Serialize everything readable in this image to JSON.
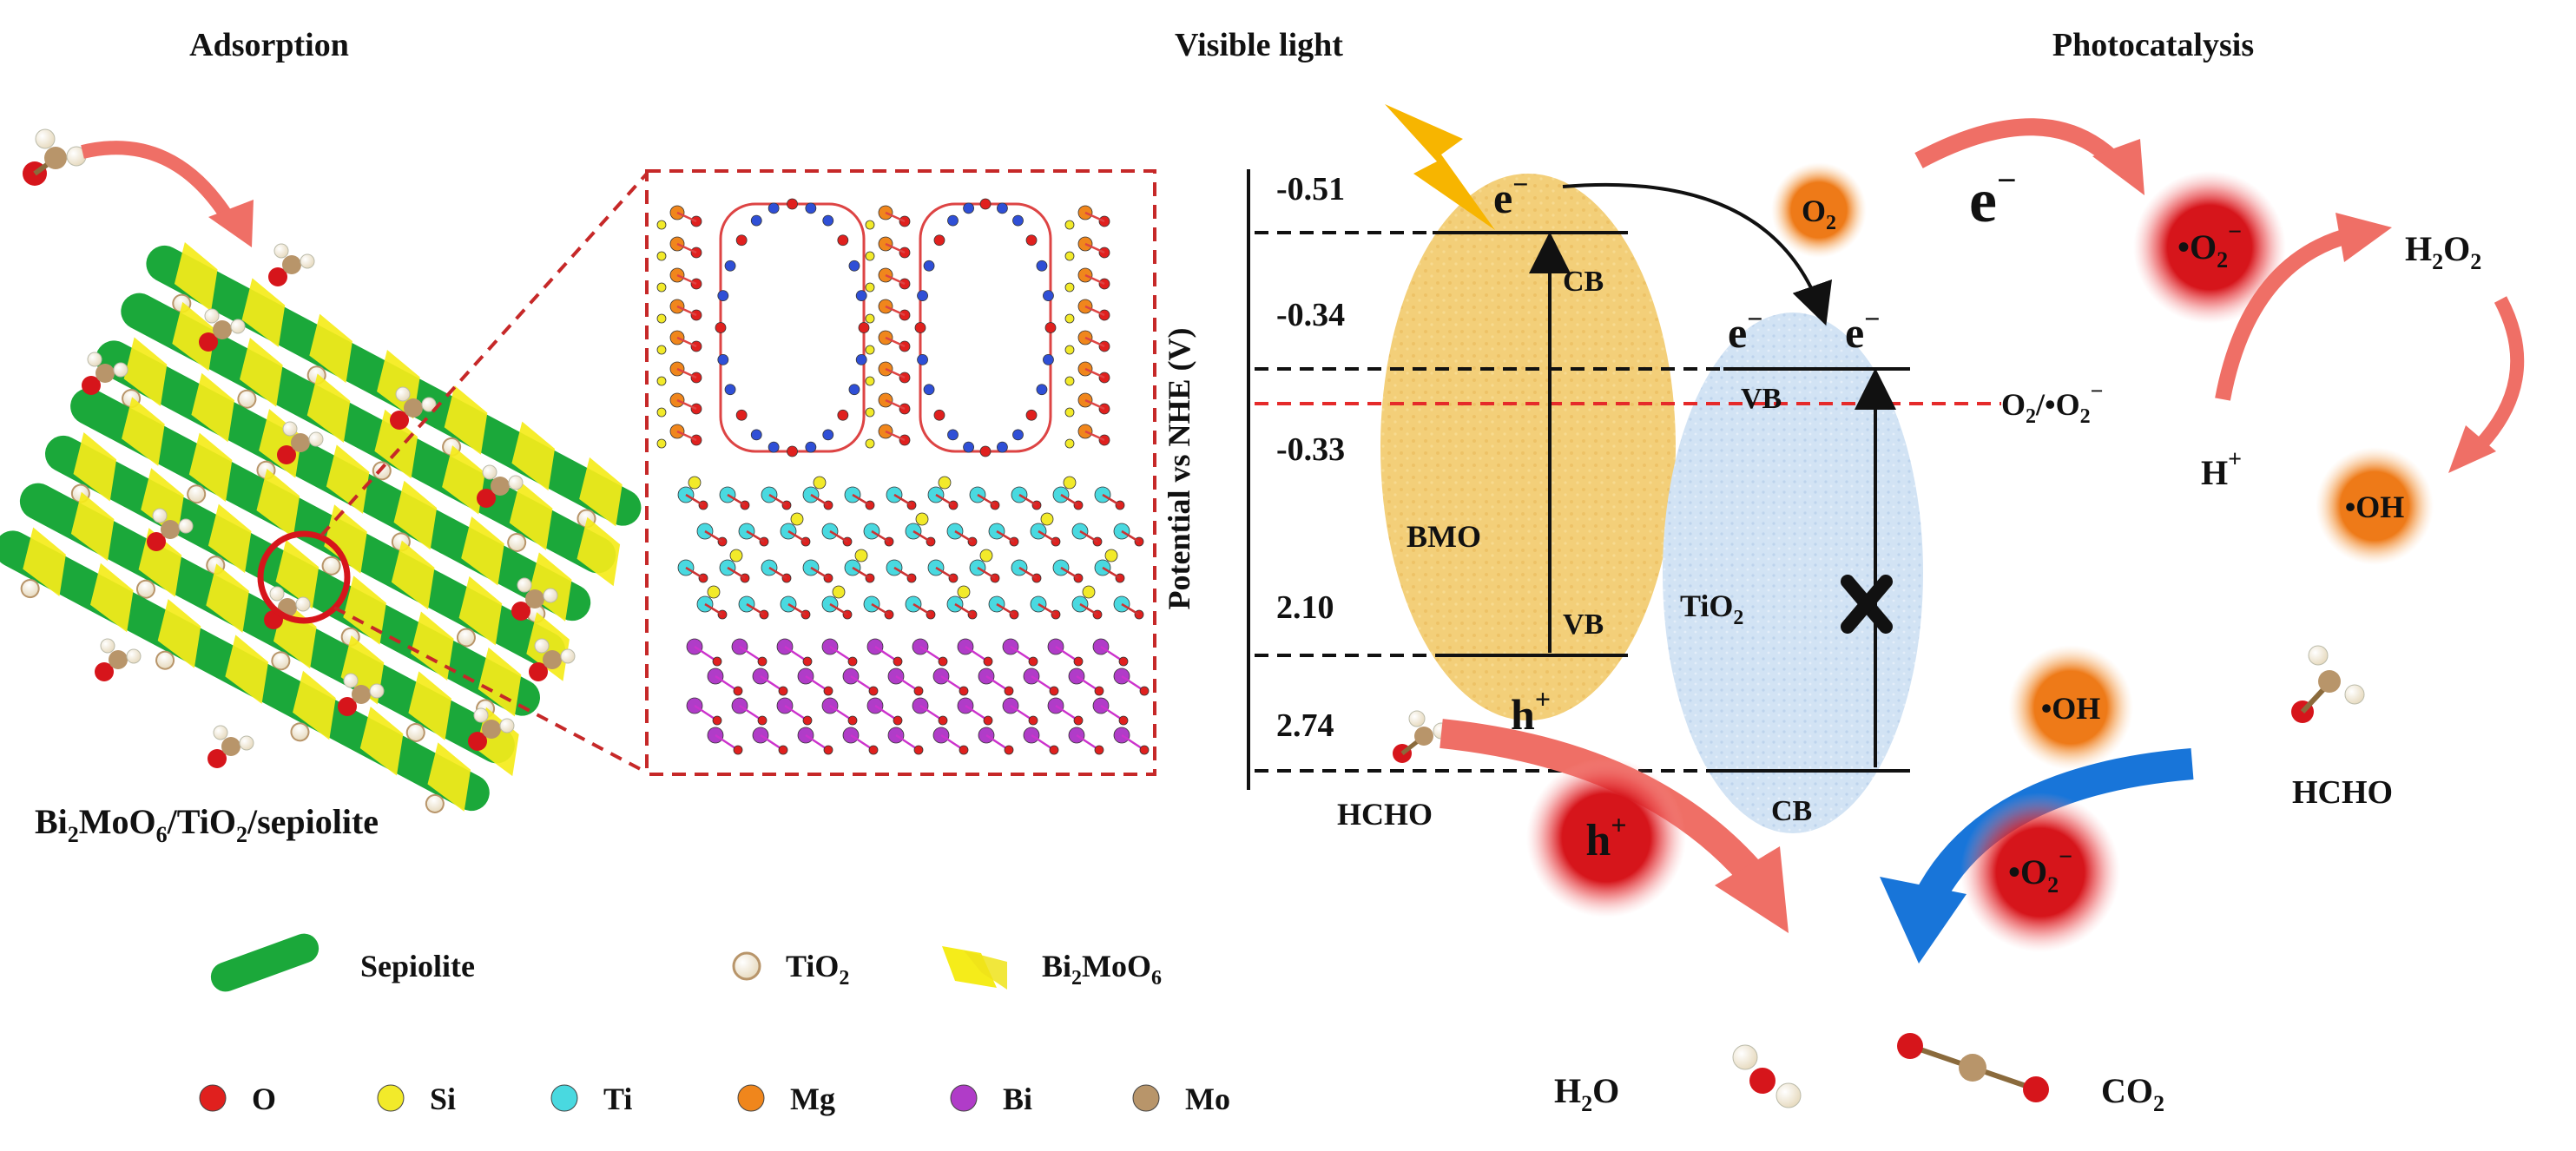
{
  "headings": {
    "adsorption": "Adsorption",
    "visible_light": "Visible light",
    "photocatalysis": "Photocatalysis"
  },
  "composite_label": {
    "a": "Bi",
    "b": "2",
    "c": "MoO",
    "d": "6",
    "e": "/TiO",
    "f": "2",
    "g": "/sepiolite"
  },
  "legend": {
    "sepiolite": "Sepiolite",
    "tio2": {
      "a": "TiO",
      "b": "2"
    },
    "bi2moo6": {
      "a": "Bi",
      "b": "2",
      "c": "MoO",
      "d": "6"
    },
    "atoms": [
      {
        "label": "O",
        "color": "#e0201e"
      },
      {
        "label": "Si",
        "color": "#f2ea2a"
      },
      {
        "label": "Ti",
        "color": "#49d9e0"
      },
      {
        "label": "Mg",
        "color": "#f0861c"
      },
      {
        "label": "Bi",
        "color": "#b03cc8"
      },
      {
        "label": "Mo",
        "color": "#b8956a"
      }
    ]
  },
  "band": {
    "axis_label": "Potential vs NHE (V)",
    "levels": [
      "-0.51",
      "-0.34",
      "-0.33",
      "2.10",
      "2.74"
    ],
    "bmo": "BMO",
    "tio2": {
      "a": "TiO",
      "b": "2"
    },
    "cb": "CB",
    "vb": "VB",
    "electron": "e",
    "minus": "−",
    "hole": "h",
    "plus": "+",
    "redox": {
      "a": "O",
      "b": "2",
      "c": "/•O",
      "d": "2",
      "e": "−"
    },
    "hcho": "HCHO"
  },
  "photo": {
    "o2": {
      "a": "O",
      "b": "2"
    },
    "electron": "e",
    "minus": "−",
    "superoxide": {
      "a": "•O",
      "b": "2",
      "c": "−"
    },
    "h2o2": {
      "a": "H",
      "b": "2",
      "c": "O",
      "d": "2"
    },
    "hplus": {
      "a": "H",
      "b": "+"
    },
    "oh": "•OH",
    "hcho": "HCHO",
    "hole": "h",
    "plus": "+",
    "h2o": {
      "a": "H",
      "b": "2",
      "c": "O"
    },
    "co2": {
      "a": "CO",
      "b": "2"
    }
  },
  "colors": {
    "sepiolite_green": "#1ba83a",
    "bmo_yellow": "#f3cf79",
    "tio2_blue": "#cfe1f3",
    "red_radical": "#d6151b",
    "orange_radical": "#f07d1b",
    "pink_arrow": "#ef6f66",
    "blue_arrow": "#1875d9",
    "redox_line": "#e52a2a",
    "zoom_box": "#c62828"
  }
}
